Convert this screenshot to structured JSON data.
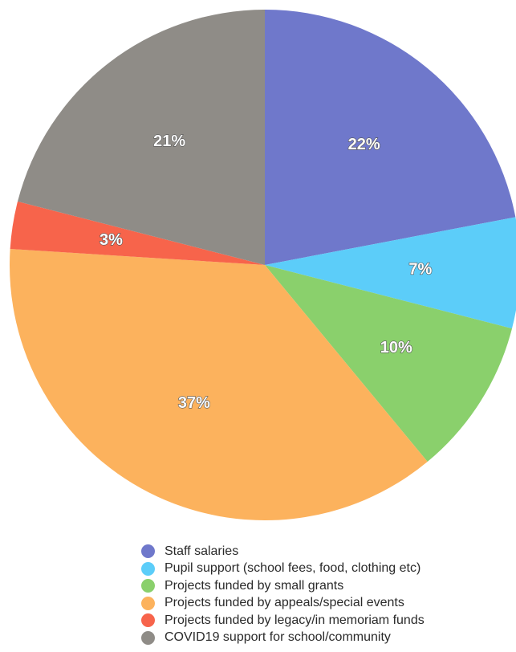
{
  "chart_data": {
    "type": "pie",
    "title": "",
    "slices": [
      {
        "label": "Staff salaries",
        "value": 22,
        "display": "22%",
        "color": "#6f78cb"
      },
      {
        "label": "Pupil support (school fees, food, clothing etc)",
        "value": 7,
        "display": "7%",
        "color": "#5ccdf9"
      },
      {
        "label": "Projects funded by small grants",
        "value": 10,
        "display": "10%",
        "color": "#8ad06c"
      },
      {
        "label": "Projects funded by appeals/special events",
        "value": 37,
        "display": "37%",
        "color": "#fcb25d"
      },
      {
        "label": "Projects funded by legacy/in memoriam funds",
        "value": 3,
        "display": "3%",
        "color": "#f7644b"
      },
      {
        "label": "COVID19 support for school/community",
        "value": 21,
        "display": "21%",
        "color": "#8f8c87"
      }
    ],
    "start": "12 o'clock",
    "direction": "clockwise",
    "legend_position": "bottom"
  }
}
